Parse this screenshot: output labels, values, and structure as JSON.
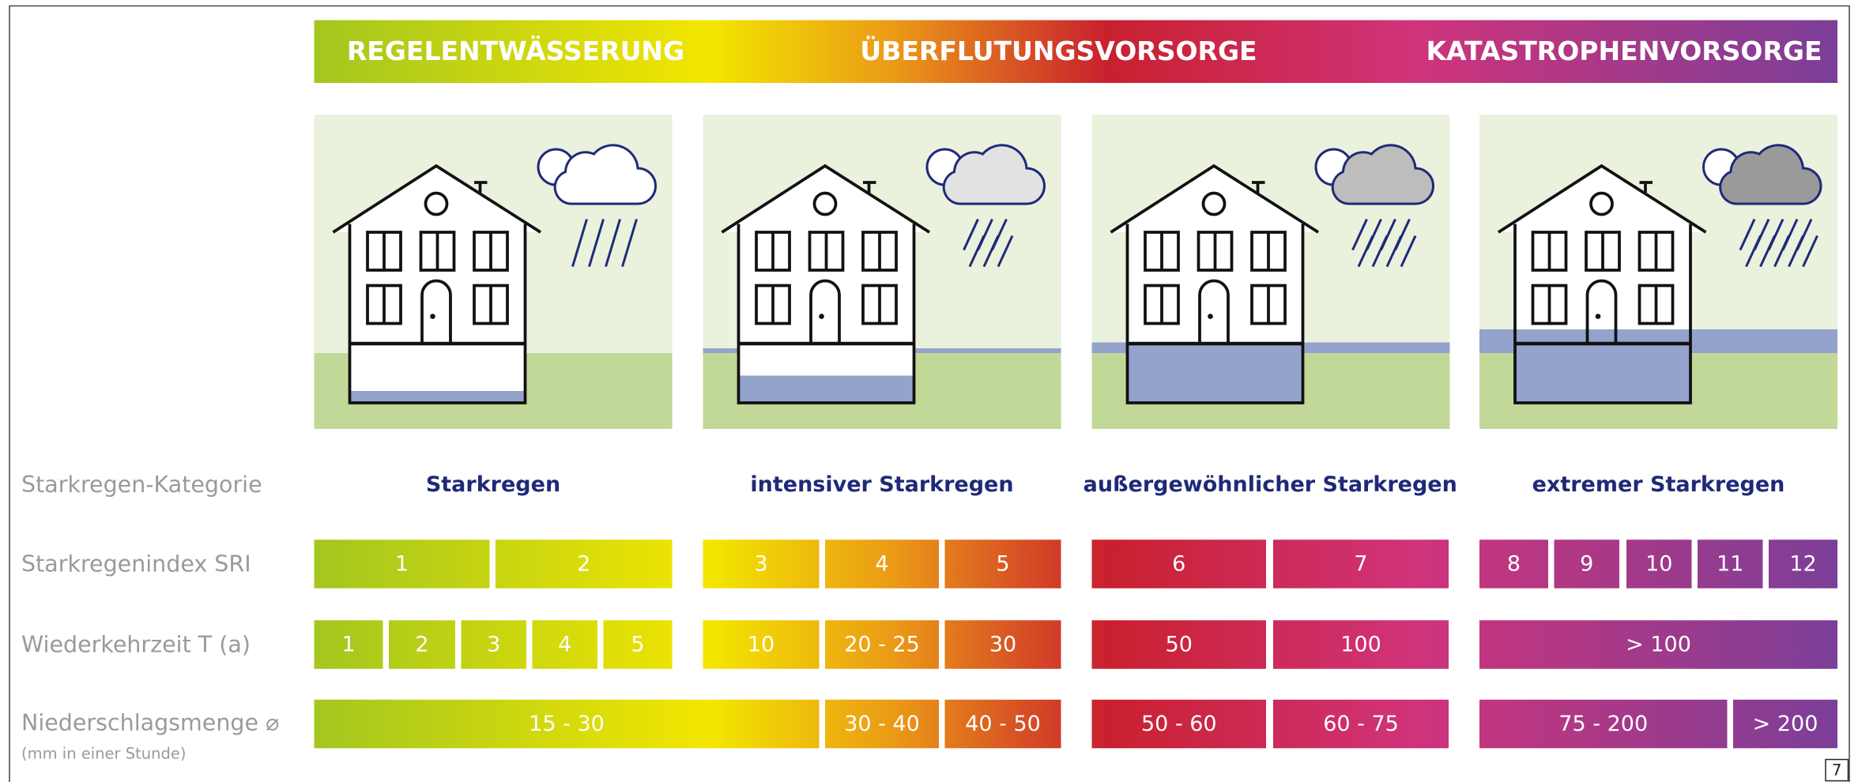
{
  "header": {
    "bands": [
      "REGELENTWÄSSERUNG",
      "ÜBERFLUTUNGSVORSORGE",
      "KATASTROPHENVORSORGE"
    ]
  },
  "rows": [
    {
      "label": "Starkregen-Kategorie",
      "cells": [
        "Starkregen",
        "intensiver Starkregen",
        "außergewöhnlicher Starkregen",
        "extremer Starkregen"
      ]
    },
    {
      "label": "Starkregenindex SRI",
      "cells": [
        "1",
        "2",
        "3",
        "4",
        "5",
        "6",
        "7",
        "8",
        "9",
        "10",
        "11",
        "12"
      ]
    },
    {
      "label": "Wiederkehrzeit T (a)",
      "cells": [
        "1",
        "2",
        "3",
        "4",
        "5",
        "10",
        "20 - 25",
        "30",
        "50",
        "100",
        "> 100"
      ]
    },
    {
      "label": "Niederschlagsmenge ⌀",
      "note": "(mm in einer Stunde)",
      "cells": [
        "15 - 30",
        "30 - 40",
        "40 - 50",
        "50 - 60",
        "60 - 75",
        "75 - 200",
        "> 200"
      ]
    }
  ],
  "page_number": "7"
}
